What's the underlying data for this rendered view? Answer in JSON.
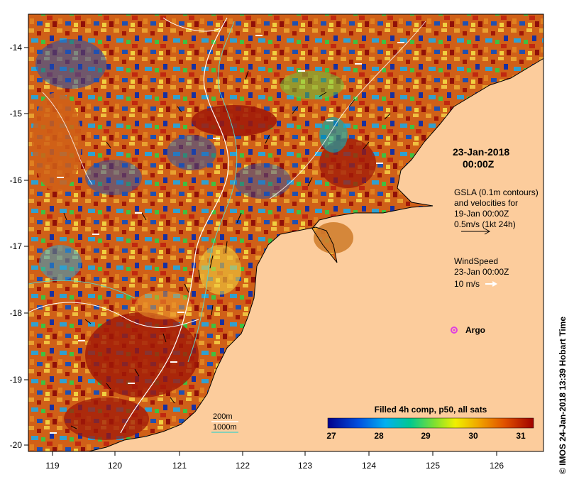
{
  "map": {
    "x_ticks": [
      "119",
      "120",
      "121",
      "122",
      "123",
      "124",
      "125",
      "126"
    ],
    "y_ticks": [
      "-14",
      "-15",
      "-16",
      "-17",
      "-18",
      "-19",
      "-20"
    ]
  },
  "annotations": {
    "date": "23-Jan-2018",
    "time": "00:00Z",
    "gsla_line1": "GSLA (0.1m contours)",
    "gsla_line2": "and velocities for",
    "gsla_line3": "19-Jan 00:00Z",
    "gsla_line4": "0.5m/s (1kt 24h)",
    "wind_line1": "WindSpeed",
    "wind_line2": "23-Jan 00:00Z",
    "wind_scale": "10 m/s",
    "argo": "Argo"
  },
  "bathymetry": {
    "label_200": "200m",
    "label_1000": "1000m"
  },
  "colorbar": {
    "title": "Filled 4h comp, p50, all sats",
    "ticks": [
      "27",
      "28",
      "29",
      "30",
      "31"
    ]
  },
  "credit": "© IMOS 24-Jan-2018 13:39 Hobart Time",
  "colors": {
    "land": "#fccc9c",
    "sea_warm": "#c04010",
    "sea_hot": "#a01808",
    "argo": "#e040e0",
    "contour_200": "#ffffff",
    "contour_1000": "#60d0c0"
  }
}
